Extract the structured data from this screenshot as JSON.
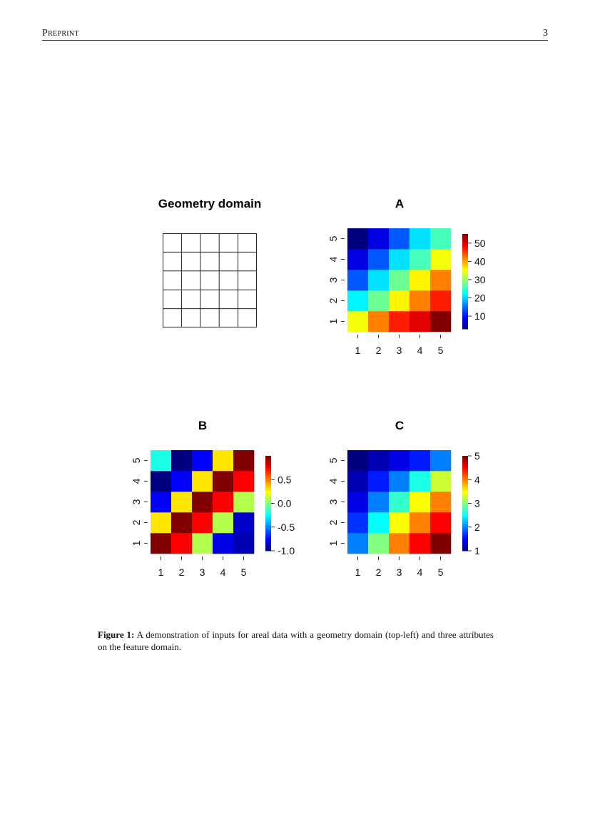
{
  "header": {
    "running_title": "Preprint",
    "page_number": "3"
  },
  "figure": {
    "caption_label": "Figure 1:",
    "caption_text": "A demonstration of inputs for areal data with a geometry domain (top-left) and three attributes on the feature domain."
  },
  "chart_data": [
    {
      "type": "table",
      "title": "Geometry domain",
      "rows": 5,
      "cols": 5
    },
    {
      "type": "heatmap",
      "title": "A",
      "x_ticks": [
        "1",
        "2",
        "3",
        "4",
        "5"
      ],
      "y_ticks": [
        "1",
        "2",
        "3",
        "4",
        "5"
      ],
      "values_by_y": [
        [
          35,
          42,
          47,
          50,
          55
        ],
        [
          22,
          28,
          36,
          42,
          47
        ],
        [
          14,
          21,
          28,
          36,
          42
        ],
        [
          8,
          14,
          21,
          26,
          35
        ],
        [
          3,
          8,
          14,
          21,
          26
        ]
      ],
      "colorbar": {
        "min": 3,
        "max": 55,
        "ticks": [
          "10",
          "20",
          "30",
          "40",
          "50"
        ],
        "tick_values": [
          10,
          20,
          30,
          40,
          50
        ]
      },
      "palette": "jet"
    },
    {
      "type": "heatmap",
      "title": "B",
      "x_ticks": [
        "1",
        "2",
        "3",
        "4",
        "5"
      ],
      "y_ticks": [
        "1",
        "2",
        "3",
        "4",
        "5"
      ],
      "values_by_y": [
        [
          1.0,
          0.75,
          0.1,
          -0.8,
          -0.9
        ],
        [
          0.3,
          1.0,
          0.75,
          0.1,
          -0.85
        ],
        [
          -0.75,
          0.3,
          1.0,
          0.75,
          0.1
        ],
        [
          -1.0,
          -0.75,
          0.3,
          1.0,
          0.75
        ],
        [
          -0.2,
          -1.0,
          -0.75,
          0.3,
          1.0
        ]
      ],
      "colorbar": {
        "min": -1.0,
        "max": 1.0,
        "ticks": [
          "-1.0",
          "-0.5",
          "0.0",
          "0.5"
        ],
        "tick_values": [
          -1.0,
          -0.5,
          0.0,
          0.5
        ]
      },
      "palette": "jet"
    },
    {
      "type": "heatmap",
      "title": "C",
      "x_ticks": [
        "1",
        "2",
        "3",
        "4",
        "5"
      ],
      "y_ticks": [
        "1",
        "2",
        "3",
        "4",
        "5"
      ],
      "values_by_y": [
        [
          2.0,
          3.0,
          4.0,
          4.5,
          5.0
        ],
        [
          1.7,
          2.5,
          3.5,
          4.0,
          4.5
        ],
        [
          1.4,
          2.0,
          2.7,
          3.5,
          4.0
        ],
        [
          1.2,
          1.6,
          2.0,
          2.6,
          3.3
        ],
        [
          1.0,
          1.2,
          1.4,
          1.6,
          2.0
        ]
      ],
      "colorbar": {
        "min": 1,
        "max": 5,
        "ticks": [
          "1",
          "2",
          "3",
          "4",
          "5"
        ],
        "tick_values": [
          1,
          2,
          3,
          4,
          5
        ]
      },
      "palette": "jet"
    }
  ]
}
